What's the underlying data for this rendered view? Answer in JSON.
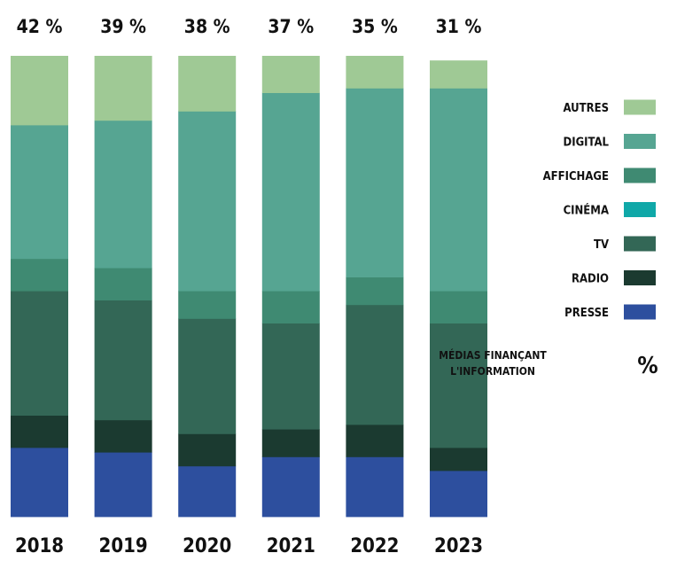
{
  "chart_data": {
    "type": "bar",
    "stacked": true,
    "normalized_percent": true,
    "categories": [
      "2018",
      "2019",
      "2020",
      "2021",
      "2022",
      "2023"
    ],
    "top_labels": [
      "42 %",
      "39 %",
      "38 %",
      "37 %",
      "35 %",
      "31 %"
    ],
    "series": [
      {
        "name": "PRESSE",
        "color": "#2d4f9e",
        "values": [
          15,
          14,
          11,
          13,
          13,
          10
        ]
      },
      {
        "name": "RADIO",
        "color": "#1b3a30",
        "values": [
          7,
          7,
          7,
          6,
          7,
          5
        ]
      },
      {
        "name": "TV",
        "color": "#336756",
        "values": [
          27,
          26,
          25,
          23,
          26,
          27
        ]
      },
      {
        "name": "CINÉMA",
        "color": "#10a8a8",
        "values": [
          0,
          0,
          0,
          0,
          0,
          0
        ]
      },
      {
        "name": "AFFICHAGE",
        "color": "#3f8a72",
        "values": [
          7,
          7,
          6,
          7,
          6,
          7
        ]
      },
      {
        "name": "DIGITAL",
        "color": "#56a592",
        "values": [
          29,
          32,
          39,
          43,
          41,
          44
        ]
      },
      {
        "name": "AUTRES",
        "color": "#9fc995",
        "values": [
          15,
          14,
          12,
          8,
          7,
          6
        ]
      }
    ],
    "ylim": [
      0,
      100
    ],
    "legend": {
      "position": "right",
      "order": [
        "AUTRES",
        "DIGITAL",
        "AFFICHAGE",
        "CINÉMA",
        "TV",
        "RADIO",
        "PRESSE"
      ]
    },
    "annotation": {
      "text_lines": [
        "MÉDIAS FINANÇANT",
        "L'INFORMATION"
      ],
      "symbol": "%"
    }
  }
}
